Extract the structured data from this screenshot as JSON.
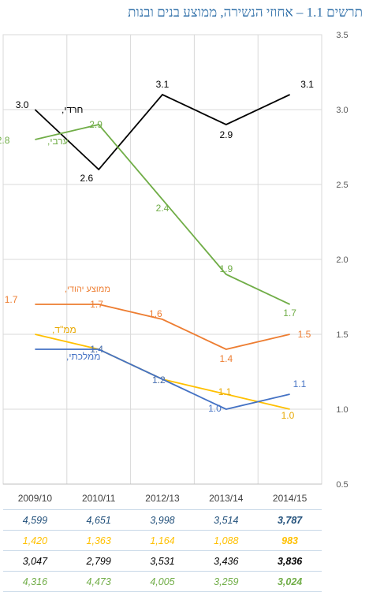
{
  "title": "תרשים 1.1 – אחוזי הנשירה, ממוצע בנים ובנות",
  "chart_data": {
    "type": "line",
    "title": "תרשים 1.1 – אחוזי הנשירה, ממוצע בנים ובנות",
    "categories": [
      "2009/10",
      "2010/11",
      "2012/13",
      "2013/14",
      "2014/15"
    ],
    "ylim": [
      0.5,
      3.5
    ],
    "yticks": [
      "0.5",
      "1.0",
      "1.5",
      "2.0",
      "2.5",
      "3.0",
      "3.5"
    ],
    "y_axis_side": "right",
    "grid": true,
    "series": [
      {
        "name": "חרדי,",
        "color": "#000000",
        "values": [
          3.0,
          2.6,
          3.1,
          2.9,
          3.1
        ],
        "labels": [
          "3.0",
          "2.6",
          "3.1",
          "2.9",
          "3.1"
        ]
      },
      {
        "name": "ערבי,",
        "color": "#70ad47",
        "values": [
          2.8,
          2.9,
          2.4,
          1.9,
          1.7
        ],
        "labels": [
          "2.8",
          "2.9",
          "2.4",
          "1.9",
          "1.7"
        ]
      },
      {
        "name": "ממוצע יהודי,",
        "color": "#ed7d31",
        "values": [
          1.7,
          1.7,
          1.6,
          1.4,
          1.5
        ],
        "labels": [
          "1.7",
          "1.7",
          "1.6",
          "1.4",
          "1.5"
        ]
      },
      {
        "name": "ממ\"ד,",
        "color": "#ffc000",
        "values": [
          1.5,
          1.4,
          1.2,
          1.1,
          1.0
        ],
        "labels": [
          "1.5",
          "1.4",
          "1.2",
          "1.1",
          "1.0"
        ]
      },
      {
        "name": "ממלכתי,",
        "color": "#4472c4",
        "values": [
          1.4,
          1.4,
          1.2,
          1.0,
          1.1
        ],
        "labels": [
          "1.4",
          "1.4",
          "1.2",
          "1.0",
          "1.1"
        ]
      }
    ]
  },
  "table": {
    "rows": [
      {
        "color": "#1f4e79",
        "cells": [
          "4,599",
          "4,651",
          "3,998",
          "3,514",
          "3,787"
        ]
      },
      {
        "color": "#ffc000",
        "cells": [
          "1,420",
          "1,363",
          "1,164",
          "1,088",
          "983"
        ]
      },
      {
        "color": "#000000",
        "cells": [
          "3,047",
          "2,799",
          "3,531",
          "3,436",
          "3,836"
        ]
      },
      {
        "color": "#70ad47",
        "cells": [
          "4,316",
          "4,473",
          "4,005",
          "3,259",
          "3,024"
        ]
      }
    ]
  }
}
